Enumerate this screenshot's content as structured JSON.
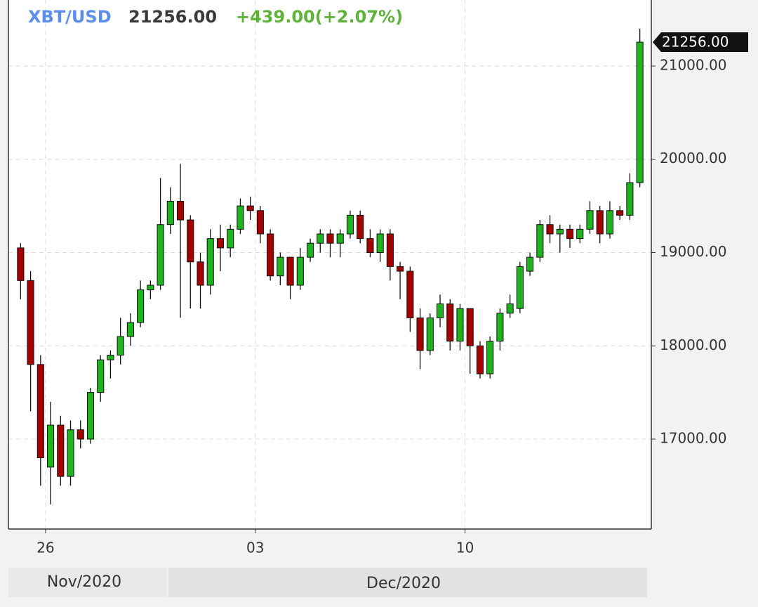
{
  "header": {
    "symbol": "XBT/USD",
    "price": "21256.00",
    "change": "+439.00(+2.07%)"
  },
  "chart_data": {
    "type": "candlestick",
    "categories": [
      null,
      null,
      null,
      null,
      null,
      null,
      null,
      null,
      null,
      null,
      null,
      null,
      null,
      null,
      null,
      null,
      null,
      null,
      null,
      null,
      null,
      null,
      null,
      null,
      null,
      null,
      null,
      null,
      null,
      null,
      null,
      null,
      null,
      null,
      null,
      null,
      null,
      null,
      null,
      null,
      null,
      null,
      null,
      null,
      null,
      null,
      null,
      null,
      null,
      null,
      null,
      null,
      null,
      null,
      null,
      null,
      null,
      null,
      null,
      null,
      null,
      null,
      null
    ],
    "open": [
      19050,
      18700,
      17800,
      16700,
      17150,
      16600,
      17100,
      17000,
      17500,
      17850,
      17900,
      18100,
      18250,
      18600,
      18650,
      19300,
      19550,
      19350,
      18900,
      18650,
      19150,
      19050,
      19250,
      19500,
      19450,
      19200,
      18750,
      18950,
      18650,
      18950,
      19100,
      19200,
      19100,
      19200,
      19400,
      19150,
      19000,
      19200,
      18850,
      18800,
      18300,
      17950,
      18300,
      18450,
      18050,
      18400,
      18000,
      17700,
      18050,
      18350,
      18400,
      18800,
      18950,
      19300,
      19200,
      19250,
      19150,
      19250,
      19450,
      19200,
      19450,
      19400,
      19750
    ],
    "high": [
      19100,
      18800,
      17900,
      17400,
      17250,
      17200,
      17200,
      17550,
      17900,
      17950,
      18300,
      18350,
      18700,
      18700,
      19800,
      19700,
      19950,
      19400,
      19000,
      19250,
      19300,
      19300,
      19580,
      19600,
      19500,
      19250,
      19000,
      18950,
      19050,
      19150,
      19250,
      19250,
      19250,
      19450,
      19450,
      19250,
      19250,
      19250,
      18900,
      18850,
      18400,
      18350,
      18550,
      18500,
      18450,
      18400,
      18050,
      18100,
      18400,
      18550,
      18900,
      19000,
      19350,
      19400,
      19300,
      19300,
      19300,
      19550,
      19500,
      19550,
      19500,
      19850,
      21400
    ],
    "low": [
      18500,
      17300,
      16500,
      16300,
      16500,
      16500,
      16900,
      16950,
      17400,
      17650,
      17800,
      18000,
      18200,
      18500,
      18600,
      19200,
      18300,
      18400,
      18400,
      18550,
      18800,
      18950,
      19200,
      19350,
      19100,
      18700,
      18650,
      18500,
      18600,
      18900,
      19000,
      18950,
      18950,
      19150,
      19100,
      18950,
      18900,
      18700,
      18500,
      18150,
      17750,
      17900,
      18200,
      17950,
      17950,
      17700,
      17650,
      17650,
      17950,
      18300,
      18350,
      18750,
      18900,
      19100,
      19000,
      19050,
      19100,
      19200,
      19100,
      19150,
      19350,
      19350,
      19700
    ],
    "close": [
      18700,
      17800,
      16800,
      17150,
      16600,
      17100,
      17000,
      17500,
      17850,
      17900,
      18100,
      18250,
      18600,
      18650,
      19300,
      19550,
      19350,
      18900,
      18650,
      19150,
      19050,
      19250,
      19500,
      19450,
      19200,
      18750,
      18950,
      18650,
      18950,
      19100,
      19200,
      19100,
      19200,
      19400,
      19150,
      19000,
      19200,
      18850,
      18800,
      18300,
      17950,
      18300,
      18450,
      18050,
      18400,
      18000,
      17700,
      18050,
      18350,
      18450,
      18850,
      18950,
      19300,
      19200,
      19250,
      19150,
      19250,
      19450,
      19200,
      19450,
      19400,
      19750,
      21256
    ],
    "up_color": "#1fb41f",
    "down_color": "#a50000",
    "xlim": [
      -0.72,
      63.65
    ],
    "xticks": [
      {
        "value": 3,
        "label": "26"
      },
      {
        "value": 24,
        "label": "03"
      },
      {
        "value": 45,
        "label": "10"
      }
    ],
    "months": [
      "Nov/2020",
      "Dec/2020"
    ],
    "ylim": [
      16036,
      21708
    ],
    "yticks": [
      {
        "value": 17000,
        "label": "17000.00"
      },
      {
        "value": 18000,
        "label": "18000.00"
      },
      {
        "value": 19000,
        "label": "19000.00"
      },
      {
        "value": 20000,
        "label": "20000.00"
      },
      {
        "value": 21000,
        "label": "21000.00"
      }
    ],
    "last_price": {
      "value": 21256,
      "label": "21256.00"
    },
    "grid": true
  }
}
